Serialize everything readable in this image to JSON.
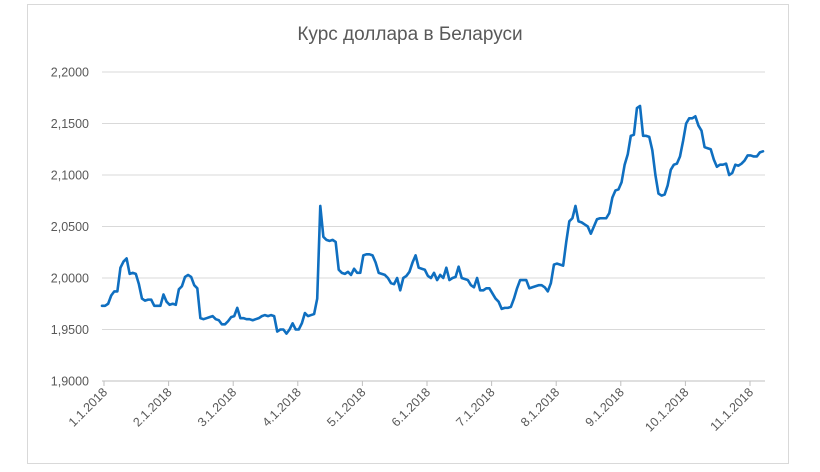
{
  "chart_data": {
    "type": "line",
    "title": "Курс доллара в Беларуси",
    "xlabel": "",
    "ylabel": "",
    "ylim": [
      1.9,
      2.2
    ],
    "y_ticks": [
      1.9,
      1.95,
      2.0,
      2.05,
      2.1,
      2.15,
      2.2
    ],
    "y_tick_labels": [
      "1,9000",
      "1,9500",
      "2,0000",
      "2,0500",
      "2,1000",
      "2,1500",
      "2,2000"
    ],
    "x_tick_labels": [
      "1.1.2018",
      "2.1.2018",
      "3.1.2018",
      "4.1.2018",
      "5.1.2018",
      "6.1.2018",
      "7.1.2018",
      "8.1.2018",
      "9.1.2018",
      "10.1.2018",
      "11.1.2018"
    ],
    "grid": true,
    "legend": "none",
    "colors": {
      "line": "#0f6fc0"
    },
    "series": [
      {
        "values": [
          1.973,
          1.973,
          1.975,
          1.983,
          1.987,
          1.987,
          2.01,
          2.016,
          2.019,
          2.004,
          2.005,
          2.004,
          1.994,
          1.98,
          1.978,
          1.979,
          1.979,
          1.973,
          1.973,
          1.973,
          1.984,
          1.977,
          1.974,
          1.975,
          1.974,
          1.989,
          1.992,
          2.001,
          2.003,
          2.001,
          1.993,
          1.99,
          1.961,
          1.96,
          1.961,
          1.962,
          1.963,
          1.96,
          1.959,
          1.955,
          1.955,
          1.958,
          1.962,
          1.963,
          1.971,
          1.961,
          1.961,
          1.96,
          1.96,
          1.959,
          1.96,
          1.961,
          1.963,
          1.964,
          1.963,
          1.964,
          1.963,
          1.948,
          1.95,
          1.95,
          1.946,
          1.95,
          1.956,
          1.95,
          1.95,
          1.956,
          1.966,
          1.963,
          1.964,
          1.965,
          1.98,
          2.07,
          2.04,
          2.037,
          2.036,
          2.037,
          2.035,
          2.008,
          2.005,
          2.004,
          2.006,
          2.003,
          2.009,
          2.005,
          2.005,
          2.022,
          2.023,
          2.023,
          2.022,
          2.015,
          2.005,
          2.004,
          2.003,
          2.0,
          1.995,
          1.994,
          2.0,
          1.988,
          2.0,
          2.002,
          2.006,
          2.015,
          2.022,
          2.01,
          2.009,
          2.008,
          2.002,
          2.0,
          2.005,
          1.998,
          2.003,
          2.0,
          2.01,
          1.998,
          2.0,
          2.001,
          2.011,
          2.0,
          1.999,
          1.998,
          1.993,
          1.991,
          2.0,
          1.988,
          1.988,
          1.99,
          1.99,
          1.985,
          1.98,
          1.977,
          1.97,
          1.971,
          1.971,
          1.972,
          1.98,
          1.99,
          1.998,
          1.998,
          1.998,
          1.99,
          1.991,
          1.992,
          1.993,
          1.993,
          1.991,
          1.987,
          1.995,
          2.013,
          2.014,
          2.013,
          2.012,
          2.035,
          2.055,
          2.058,
          2.07,
          2.055,
          2.054,
          2.052,
          2.05,
          2.043,
          2.05,
          2.057,
          2.058,
          2.058,
          2.058,
          2.063,
          2.078,
          2.085,
          2.086,
          2.093,
          2.11,
          2.12,
          2.138,
          2.139,
          2.165,
          2.167,
          2.138,
          2.138,
          2.137,
          2.124,
          2.1,
          2.082,
          2.08,
          2.081,
          2.09,
          2.105,
          2.11,
          2.111,
          2.118,
          2.133,
          2.15,
          2.155,
          2.155,
          2.157,
          2.148,
          2.143,
          2.127,
          2.126,
          2.125,
          2.115,
          2.108,
          2.11,
          2.11,
          2.111,
          2.1,
          2.102,
          2.11,
          2.109,
          2.111,
          2.114,
          2.119,
          2.119,
          2.118,
          2.118,
          2.122,
          2.123
        ]
      }
    ]
  }
}
